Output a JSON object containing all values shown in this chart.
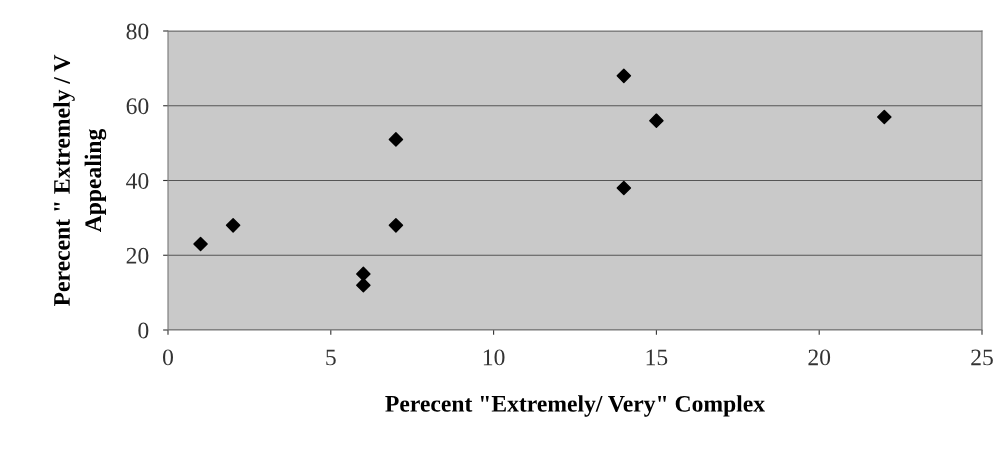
{
  "chart_data": {
    "type": "scatter",
    "xlabel": "Perecent \"Extremely/ Very\" Complex",
    "ylabel": "Perecent \" Extremely / V\nAppealing",
    "x": [
      1,
      2,
      6,
      6,
      7,
      7,
      14,
      14,
      15,
      22
    ],
    "values": [
      23,
      28,
      15,
      12,
      51,
      28,
      68,
      38,
      56,
      57
    ],
    "color": "#000000",
    "marker": "diamond",
    "xlim": [
      0,
      25
    ],
    "xticks": [
      0,
      5,
      10,
      15,
      20,
      25
    ],
    "ylim": [
      0,
      80
    ],
    "yticks": [
      0,
      20,
      40,
      60,
      80
    ],
    "grid": "y"
  }
}
